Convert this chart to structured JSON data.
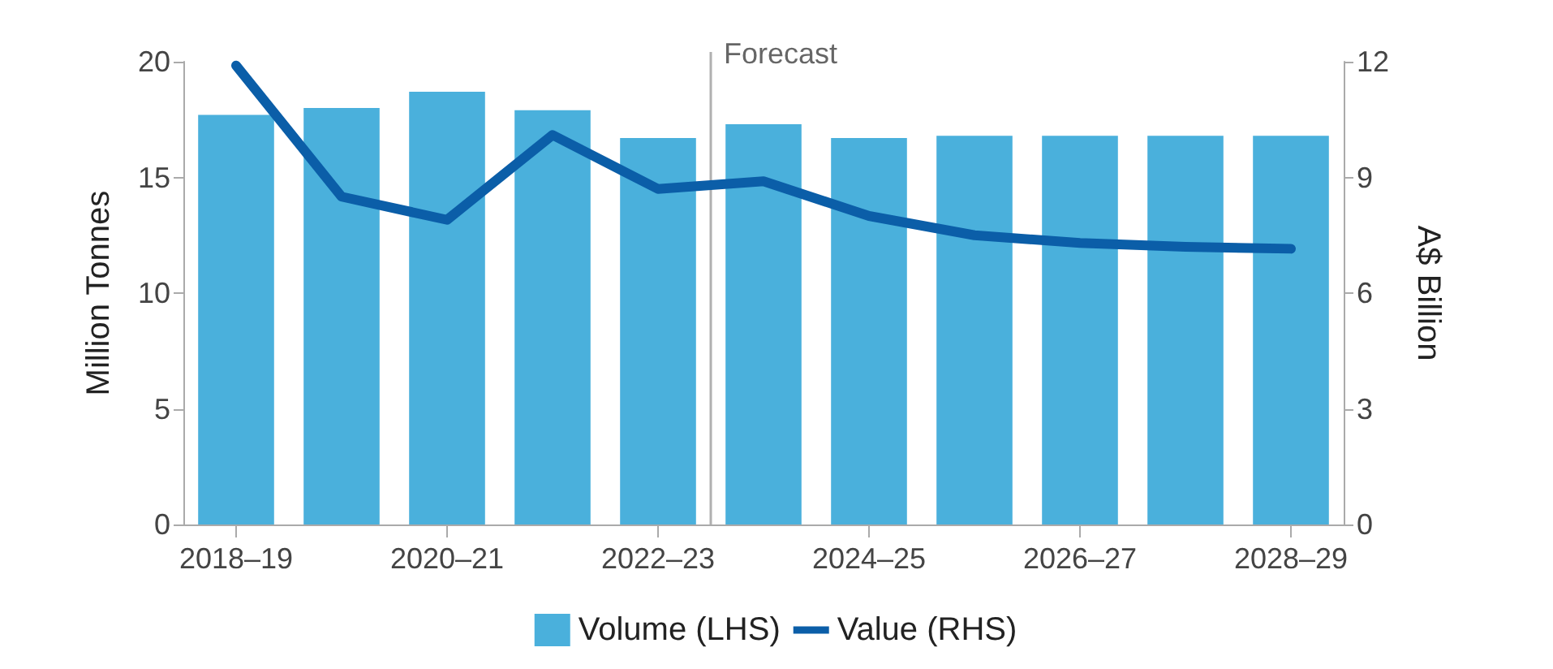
{
  "chart_data": {
    "type": "bar",
    "categories": [
      "2018–19",
      null,
      "2020–21",
      null,
      "2022–23",
      null,
      "2024–25",
      null,
      "2026–27",
      null,
      "2028–29"
    ],
    "series": [
      {
        "name": "Volume (LHS)",
        "color": "#4ab0dc",
        "values": [
          17.7,
          18.0,
          18.7,
          17.9,
          16.7,
          17.3,
          16.7,
          16.8,
          16.8,
          16.8,
          16.8
        ]
      },
      {
        "name": "Value (RHS)",
        "type": "line",
        "axis": "y2",
        "color": "#0b5ea8",
        "values": [
          11.9,
          8.5,
          7.9,
          10.1,
          8.7,
          8.9,
          8.0,
          7.5,
          7.3,
          7.2,
          7.15
        ]
      }
    ],
    "ylabel": "Million Tonnes",
    "y2label": "A$ Billion",
    "ylim": [
      0,
      20
    ],
    "yticks": [
      0,
      5,
      10,
      15,
      20
    ],
    "y2lim": [
      0,
      12
    ],
    "y2ticks": [
      0,
      3,
      6,
      9,
      12
    ],
    "annotations": [
      "Forecast"
    ],
    "grid": false,
    "legend": "bottom",
    "marker": "none",
    "line_style": "solid"
  }
}
